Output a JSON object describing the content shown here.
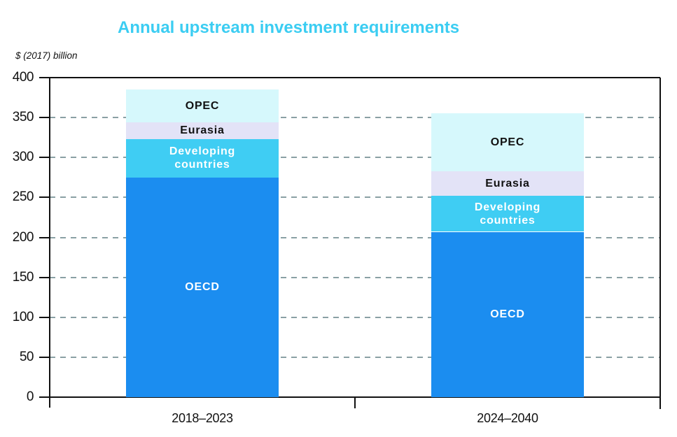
{
  "title": "Annual upstream investment requirements",
  "unit_label": "$ (2017) billion",
  "colors": {
    "title_accent": "#3bcdf2",
    "axis": "#111111",
    "gridline": "#8aa0a4",
    "background": "#ffffff"
  },
  "chart_data": {
    "type": "bar",
    "stacked": true,
    "title": "Annual upstream investment requirements",
    "ylabel": "$ (2017) billion",
    "xlabel": "",
    "categories": [
      "2018–2023",
      "2024–2040"
    ],
    "series": [
      {
        "name": "OECD",
        "values": [
          275,
          207
        ],
        "color": "#1b8df0",
        "text_color": "#ffffff"
      },
      {
        "name": "Developing countries",
        "values": [
          48,
          45
        ],
        "color": "#3fcdf3",
        "text_color": "#ffffff"
      },
      {
        "name": "Eurasia",
        "values": [
          21,
          31
        ],
        "color": "#e3e3f7",
        "text_color": "#111111"
      },
      {
        "name": "OPEC",
        "values": [
          41,
          72
        ],
        "color": "#d6f8fc",
        "text_color": "#111111"
      }
    ],
    "totals": [
      385,
      355
    ],
    "ylim": [
      0,
      400
    ],
    "ytick_step": 50,
    "yticks": [
      0,
      50,
      100,
      150,
      200,
      250,
      300,
      350,
      400
    ],
    "grid": "dashed-horizontal",
    "legend": "labels-inside-segments"
  }
}
